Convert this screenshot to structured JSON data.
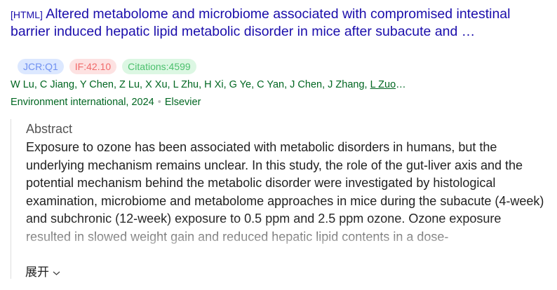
{
  "result": {
    "type_tag": "[HTML]",
    "title": "Altered metabolome and microbiome associated with compromised intestinal barrier induced hepatic lipid metabolic disorder in mice after subacute and …",
    "badges": {
      "jcr": "JCR:Q1",
      "if": "IF:42.10",
      "citations": "Citations:4599"
    },
    "authors": "W Lu, C Jiang, Y Chen, Z Lu, X Xu, L Zhu, H Xi, G Ye, C Yan, J Chen, J Zhang, ",
    "author_link": "L Zuo",
    "authors_ellipsis": "…",
    "journal": "Environment international, 2024",
    "publisher": "Elsevier",
    "abstract_heading": "Abstract",
    "abstract": "Exposure to ozone has been associated with metabolic disorders in humans, but the underlying mechanism remains unclear. In this study, the role of the gut-liver axis and the potential mechanism behind the metabolic disorder were investigated by histological examination, microbiome and metabolome approaches in mice during the subacute (4-week) and subchronic (12-week) exposure to 0.5 ppm and 2.5 ppm ozone. Ozone exposure resulted in slowed weight gain and reduced hepatic lipid contents in a dose-",
    "expand_label": "展开",
    "expand_icon": "chevron-down-icon"
  },
  "colors": {
    "title": "#1a0dab",
    "authors": "#006621"
  }
}
